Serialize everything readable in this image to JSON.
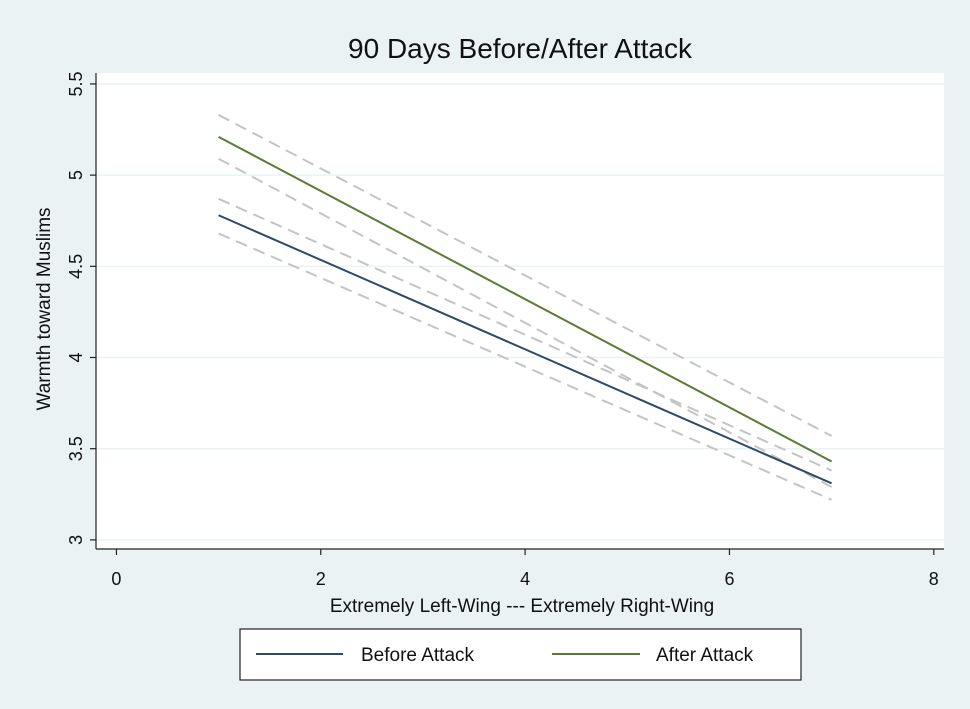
{
  "chart_data": {
    "type": "line",
    "title": "90 Days Before/After Attack",
    "xlabel": "Extremely Left-Wing --- Extremely Right-Wing",
    "ylabel": "Warmth toward Muslims",
    "xlim": [
      -0.2,
      8.1
    ],
    "ylim": [
      2.95,
      5.56
    ],
    "xticks": [
      0,
      2,
      4,
      6,
      8
    ],
    "yticks": [
      3,
      3.5,
      4,
      4.5,
      5,
      5.5
    ],
    "xtick_labels": [
      "0",
      "2",
      "4",
      "6",
      "8"
    ],
    "ytick_labels": [
      "3",
      "3.5",
      "4",
      "4.5",
      "5",
      "5.5"
    ],
    "grid": true,
    "legend_position": "bottom",
    "series": [
      {
        "name": "Before Attack",
        "color": "#2e4a6b",
        "x": [
          1,
          7
        ],
        "y": [
          4.78,
          3.31
        ],
        "ci_upper": [
          4.87,
          3.38
        ],
        "ci_lower": [
          4.68,
          3.22
        ]
      },
      {
        "name": "After Attack",
        "color": "#5b7a32",
        "x": [
          1,
          7
        ],
        "y": [
          5.21,
          3.43
        ],
        "ci_upper": [
          5.33,
          3.57
        ],
        "ci_lower": [
          5.09,
          3.29
        ]
      }
    ],
    "ci_color": "#c4c4c4"
  }
}
